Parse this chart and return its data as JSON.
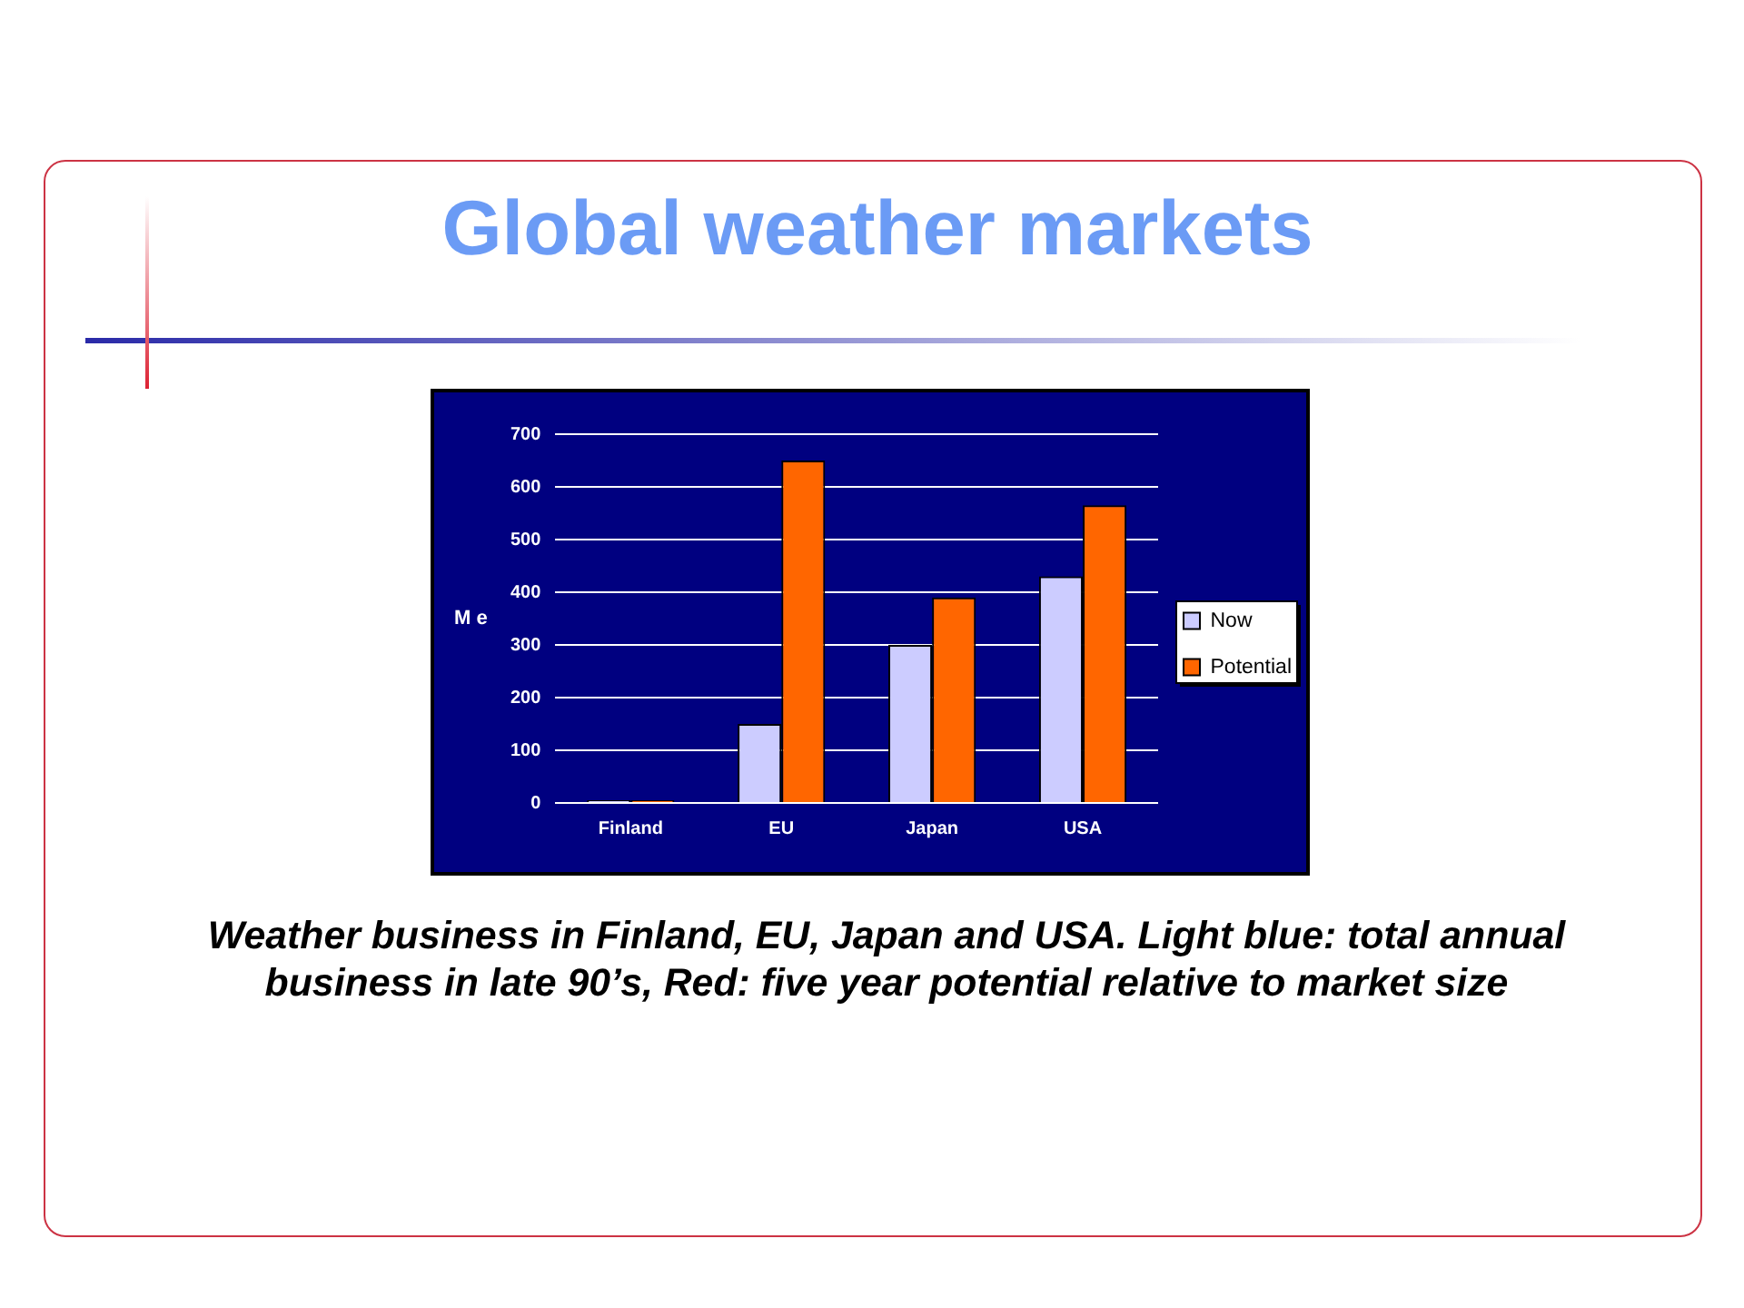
{
  "chart_data": {
    "type": "bar",
    "title": "Global weather markets",
    "ylabel": "M e",
    "categories": [
      "Finland",
      "EU",
      "Japan",
      "USA"
    ],
    "series": [
      {
        "name": "Now",
        "color": "#ccccff",
        "values": [
          5,
          150,
          300,
          430
        ]
      },
      {
        "name": "Potential",
        "color": "#ff6600",
        "values": [
          5,
          650,
          390,
          565
        ]
      }
    ],
    "ylim": [
      0,
      700
    ],
    "yticks": [
      0,
      100,
      200,
      300,
      400,
      500,
      600,
      700
    ],
    "grid": "y",
    "legend": "right",
    "annotations": [
      "Weather business in Finland, EU, Japan and USA. Light blue: total annual business in late 90’s, Red: five year potential relative to market size"
    ]
  }
}
